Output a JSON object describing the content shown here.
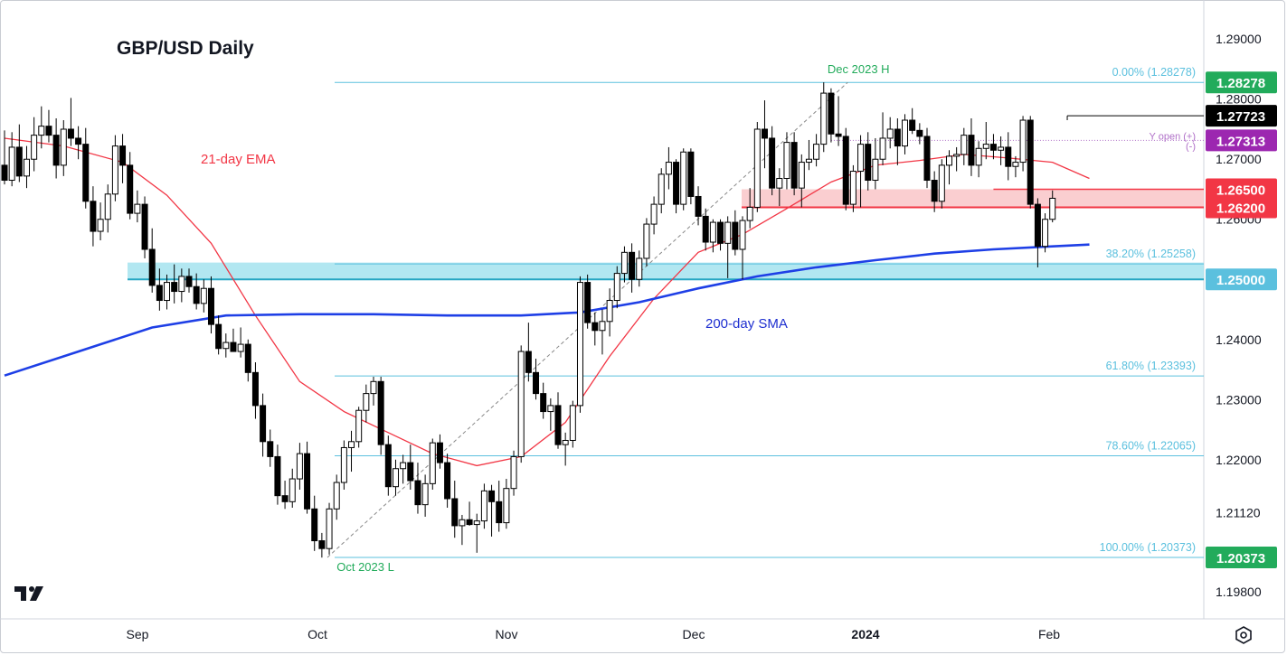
{
  "title": "GBP/USD Daily",
  "colors": {
    "bull_body": "#ffffff",
    "bear_body": "#000000",
    "fib": "#5bc0de",
    "ema": "#f23645",
    "sma": "#1e3fe6",
    "support_zone": "#a4e3ef",
    "resistance_zone": "#f9c5c8"
  },
  "chart_data": {
    "type": "candlestick",
    "symbol": "GBP/USD",
    "timeframe": "Daily",
    "y_axis": {
      "range": [
        1.1935,
        1.2965
      ],
      "ticks": [
        "1.29000",
        "1.28000",
        "1.27000",
        "1.26000",
        "1.25000",
        "1.24000",
        "1.23000",
        "1.22000",
        "1.21120",
        "1.19800"
      ]
    },
    "x_axis": {
      "labels": [
        "Sep",
        "Oct",
        "Nov",
        "Dec",
        "2024",
        "Feb"
      ],
      "bold_label": "2024"
    },
    "price_tags": [
      {
        "label": "1.28278",
        "price": 1.28278,
        "color": "#22ab5b"
      },
      {
        "label": "1.27723",
        "price": 1.27723,
        "color": "#000000"
      },
      {
        "label": "1.27313",
        "price": 1.27313,
        "color": "#9c27b0"
      },
      {
        "label": "1.26500",
        "price": 1.265,
        "color": "#f23645"
      },
      {
        "label": "1.26200",
        "price": 1.262,
        "color": "#f23645"
      },
      {
        "label": "1.25000",
        "price": 1.25,
        "color": "#5bc0de"
      },
      {
        "label": "1.20373",
        "price": 1.20373,
        "color": "#22ab5b"
      }
    ],
    "fibonacci": {
      "levels": [
        {
          "label": "0.00% (1.28278)",
          "price": 1.28278
        },
        {
          "label": "38.20% (1.25258)",
          "price": 1.25258
        },
        {
          "label": "61.80% (1.23393)",
          "price": 1.23393
        },
        {
          "label": "78.60% (1.22065)",
          "price": 1.22065
        },
        {
          "label": "100.00% (1.20373)",
          "price": 1.20373
        }
      ],
      "high_label": "Dec 2023 H",
      "low_label": "Oct 2023 L"
    },
    "zones": [
      {
        "name": "support",
        "from": 1.25,
        "to": 1.2528
      },
      {
        "name": "resistance",
        "from": 1.262,
        "to": 1.265
      }
    ],
    "horizontal_lines": [
      {
        "name": "support-line",
        "price": 1.25
      },
      {
        "name": "resistance-line-upper",
        "price": 1.265
      },
      {
        "name": "resistance-line-lower",
        "price": 1.262
      }
    ],
    "annotations": {
      "ema_label": "21-day EMA",
      "sma_label": "200-day SMA",
      "yopen_label": "Y open (+)",
      "yopen_sub": "(-)",
      "yopen_price": 1.27313
    },
    "candles": [
      {
        "o": 1.269,
        "h": 1.2748,
        "l": 1.2658,
        "c": 1.2665
      },
      {
        "o": 1.2665,
        "h": 1.2745,
        "l": 1.2655,
        "c": 1.272
      },
      {
        "o": 1.272,
        "h": 1.2758,
        "l": 1.2662,
        "c": 1.2672
      },
      {
        "o": 1.2672,
        "h": 1.2722,
        "l": 1.2652,
        "c": 1.27
      },
      {
        "o": 1.27,
        "h": 1.277,
        "l": 1.268,
        "c": 1.274
      },
      {
        "o": 1.274,
        "h": 1.2788,
        "l": 1.2718,
        "c": 1.2755
      },
      {
        "o": 1.2755,
        "h": 1.2782,
        "l": 1.2728,
        "c": 1.274
      },
      {
        "o": 1.274,
        "h": 1.2768,
        "l": 1.2668,
        "c": 1.269
      },
      {
        "o": 1.269,
        "h": 1.2765,
        "l": 1.2672,
        "c": 1.275
      },
      {
        "o": 1.275,
        "h": 1.2802,
        "l": 1.2722,
        "c": 1.2735
      },
      {
        "o": 1.2735,
        "h": 1.2755,
        "l": 1.27,
        "c": 1.2725
      },
      {
        "o": 1.2725,
        "h": 1.2752,
        "l": 1.2618,
        "c": 1.263
      },
      {
        "o": 1.263,
        "h": 1.2655,
        "l": 1.2555,
        "c": 1.258
      },
      {
        "o": 1.258,
        "h": 1.2628,
        "l": 1.2565,
        "c": 1.26
      },
      {
        "o": 1.26,
        "h": 1.2658,
        "l": 1.2578,
        "c": 1.2642
      },
      {
        "o": 1.2642,
        "h": 1.274,
        "l": 1.263,
        "c": 1.2722
      },
      {
        "o": 1.2722,
        "h": 1.2742,
        "l": 1.266,
        "c": 1.269
      },
      {
        "o": 1.269,
        "h": 1.2712,
        "l": 1.26,
        "c": 1.261
      },
      {
        "o": 1.261,
        "h": 1.2648,
        "l": 1.2595,
        "c": 1.2625
      },
      {
        "o": 1.2625,
        "h": 1.2638,
        "l": 1.2535,
        "c": 1.255
      },
      {
        "o": 1.255,
        "h": 1.2585,
        "l": 1.2478,
        "c": 1.249
      },
      {
        "o": 1.249,
        "h": 1.2518,
        "l": 1.2448,
        "c": 1.2465
      },
      {
        "o": 1.2465,
        "h": 1.2508,
        "l": 1.245,
        "c": 1.2495
      },
      {
        "o": 1.2495,
        "h": 1.2525,
        "l": 1.246,
        "c": 1.248
      },
      {
        "o": 1.248,
        "h": 1.2518,
        "l": 1.2462,
        "c": 1.2505
      },
      {
        "o": 1.2505,
        "h": 1.2518,
        "l": 1.2478,
        "c": 1.2488
      },
      {
        "o": 1.2488,
        "h": 1.251,
        "l": 1.245,
        "c": 1.246
      },
      {
        "o": 1.246,
        "h": 1.25,
        "l": 1.2445,
        "c": 1.2485
      },
      {
        "o": 1.2485,
        "h": 1.2505,
        "l": 1.241,
        "c": 1.2425
      },
      {
        "o": 1.2425,
        "h": 1.244,
        "l": 1.2375,
        "c": 1.2385
      },
      {
        "o": 1.2385,
        "h": 1.241,
        "l": 1.237,
        "c": 1.2395
      },
      {
        "o": 1.2395,
        "h": 1.2418,
        "l": 1.238,
        "c": 1.238
      },
      {
        "o": 1.238,
        "h": 1.242,
        "l": 1.237,
        "c": 1.2392
      },
      {
        "o": 1.2392,
        "h": 1.24,
        "l": 1.233,
        "c": 1.2345
      },
      {
        "o": 1.2345,
        "h": 1.2362,
        "l": 1.2268,
        "c": 1.229
      },
      {
        "o": 1.229,
        "h": 1.231,
        "l": 1.2205,
        "c": 1.223
      },
      {
        "o": 1.223,
        "h": 1.225,
        "l": 1.2188,
        "c": 1.2205
      },
      {
        "o": 1.2205,
        "h": 1.2225,
        "l": 1.2125,
        "c": 1.214
      },
      {
        "o": 1.214,
        "h": 1.2165,
        "l": 1.2118,
        "c": 1.213
      },
      {
        "o": 1.213,
        "h": 1.2185,
        "l": 1.212,
        "c": 1.2168
      },
      {
        "o": 1.2168,
        "h": 1.2228,
        "l": 1.215,
        "c": 1.221
      },
      {
        "o": 1.221,
        "h": 1.223,
        "l": 1.211,
        "c": 1.2118
      },
      {
        "o": 1.2118,
        "h": 1.214,
        "l": 1.2048,
        "c": 1.2065
      },
      {
        "o": 1.2065,
        "h": 1.2078,
        "l": 1.2037,
        "c": 1.2052
      },
      {
        "o": 1.2052,
        "h": 1.2128,
        "l": 1.2042,
        "c": 1.2118
      },
      {
        "o": 1.2118,
        "h": 1.2175,
        "l": 1.21,
        "c": 1.2162
      },
      {
        "o": 1.2162,
        "h": 1.2232,
        "l": 1.215,
        "c": 1.222
      },
      {
        "o": 1.222,
        "h": 1.2248,
        "l": 1.218,
        "c": 1.223
      },
      {
        "o": 1.223,
        "h": 1.2288,
        "l": 1.222,
        "c": 1.2282
      },
      {
        "o": 1.2282,
        "h": 1.2325,
        "l": 1.2262,
        "c": 1.231
      },
      {
        "o": 1.231,
        "h": 1.2338,
        "l": 1.229,
        "c": 1.233
      },
      {
        "o": 1.233,
        "h": 1.2338,
        "l": 1.2208,
        "c": 1.2225
      },
      {
        "o": 1.2225,
        "h": 1.224,
        "l": 1.214,
        "c": 1.2155
      },
      {
        "o": 1.2155,
        "h": 1.22,
        "l": 1.214,
        "c": 1.2185
      },
      {
        "o": 1.2185,
        "h": 1.2208,
        "l": 1.216,
        "c": 1.2195
      },
      {
        "o": 1.2195,
        "h": 1.2225,
        "l": 1.215,
        "c": 1.2165
      },
      {
        "o": 1.2165,
        "h": 1.2195,
        "l": 1.211,
        "c": 1.2125
      },
      {
        "o": 1.2125,
        "h": 1.2175,
        "l": 1.2105,
        "c": 1.216
      },
      {
        "o": 1.216,
        "h": 1.2235,
        "l": 1.215,
        "c": 1.2228
      },
      {
        "o": 1.2228,
        "h": 1.2242,
        "l": 1.2185,
        "c": 1.2195
      },
      {
        "o": 1.2195,
        "h": 1.221,
        "l": 1.212,
        "c": 1.2135
      },
      {
        "o": 1.2135,
        "h": 1.2165,
        "l": 1.207,
        "c": 1.209
      },
      {
        "o": 1.209,
        "h": 1.2108,
        "l": 1.2058,
        "c": 1.21
      },
      {
        "o": 1.21,
        "h": 1.213,
        "l": 1.209,
        "c": 1.2092
      },
      {
        "o": 1.2092,
        "h": 1.211,
        "l": 1.2045,
        "c": 1.2098
      },
      {
        "o": 1.2098,
        "h": 1.216,
        "l": 1.2085,
        "c": 1.2148
      },
      {
        "o": 1.2148,
        "h": 1.2158,
        "l": 1.2072,
        "c": 1.213
      },
      {
        "o": 1.213,
        "h": 1.2165,
        "l": 1.208,
        "c": 1.2095
      },
      {
        "o": 1.2095,
        "h": 1.2168,
        "l": 1.2085,
        "c": 1.2152
      },
      {
        "o": 1.2152,
        "h": 1.2215,
        "l": 1.214,
        "c": 1.2205
      },
      {
        "o": 1.2205,
        "h": 1.239,
        "l": 1.2195,
        "c": 1.238
      },
      {
        "o": 1.238,
        "h": 1.2428,
        "l": 1.233,
        "c": 1.2345
      },
      {
        "o": 1.2345,
        "h": 1.2368,
        "l": 1.23,
        "c": 1.231
      },
      {
        "o": 1.231,
        "h": 1.2328,
        "l": 1.2268,
        "c": 1.228
      },
      {
        "o": 1.228,
        "h": 1.2302,
        "l": 1.2248,
        "c": 1.229
      },
      {
        "o": 1.229,
        "h": 1.2312,
        "l": 1.2218,
        "c": 1.2225
      },
      {
        "o": 1.2225,
        "h": 1.2245,
        "l": 1.219,
        "c": 1.2232
      },
      {
        "o": 1.2232,
        "h": 1.2298,
        "l": 1.222,
        "c": 1.229
      },
      {
        "o": 1.229,
        "h": 1.2505,
        "l": 1.2278,
        "c": 1.2495
      },
      {
        "o": 1.2495,
        "h": 1.2508,
        "l": 1.2418,
        "c": 1.2428
      },
      {
        "o": 1.2428,
        "h": 1.2445,
        "l": 1.239,
        "c": 1.2415
      },
      {
        "o": 1.2415,
        "h": 1.245,
        "l": 1.2375,
        "c": 1.243
      },
      {
        "o": 1.243,
        "h": 1.2485,
        "l": 1.2405,
        "c": 1.2465
      },
      {
        "o": 1.2465,
        "h": 1.2522,
        "l": 1.2452,
        "c": 1.251
      },
      {
        "o": 1.251,
        "h": 1.2555,
        "l": 1.2495,
        "c": 1.2545
      },
      {
        "o": 1.2545,
        "h": 1.256,
        "l": 1.2478,
        "c": 1.25
      },
      {
        "o": 1.25,
        "h": 1.2548,
        "l": 1.2488,
        "c": 1.2535
      },
      {
        "o": 1.2535,
        "h": 1.2602,
        "l": 1.2522,
        "c": 1.2592
      },
      {
        "o": 1.2592,
        "h": 1.2638,
        "l": 1.2575,
        "c": 1.2625
      },
      {
        "o": 1.2625,
        "h": 1.2685,
        "l": 1.261,
        "c": 1.2675
      },
      {
        "o": 1.2675,
        "h": 1.272,
        "l": 1.265,
        "c": 1.2695
      },
      {
        "o": 1.2695,
        "h": 1.27,
        "l": 1.261,
        "c": 1.2625
      },
      {
        "o": 1.2625,
        "h": 1.2718,
        "l": 1.2615,
        "c": 1.2712
      },
      {
        "o": 1.2712,
        "h": 1.2718,
        "l": 1.2625,
        "c": 1.2638
      },
      {
        "o": 1.2638,
        "h": 1.2655,
        "l": 1.259,
        "c": 1.2605
      },
      {
        "o": 1.2605,
        "h": 1.2618,
        "l": 1.2548,
        "c": 1.2562
      },
      {
        "o": 1.2562,
        "h": 1.26,
        "l": 1.2545,
        "c": 1.2595
      },
      {
        "o": 1.2595,
        "h": 1.26,
        "l": 1.2548,
        "c": 1.256
      },
      {
        "o": 1.256,
        "h": 1.2605,
        "l": 1.2502,
        "c": 1.2595
      },
      {
        "o": 1.2595,
        "h": 1.2615,
        "l": 1.254,
        "c": 1.255
      },
      {
        "o": 1.255,
        "h": 1.2605,
        "l": 1.25,
        "c": 1.2598
      },
      {
        "o": 1.2598,
        "h": 1.2652,
        "l": 1.2585,
        "c": 1.262
      },
      {
        "o": 1.262,
        "h": 1.2762,
        "l": 1.2612,
        "c": 1.275
      },
      {
        "o": 1.275,
        "h": 1.2798,
        "l": 1.2685,
        "c": 1.2735
      },
      {
        "o": 1.2735,
        "h": 1.2755,
        "l": 1.264,
        "c": 1.2652
      },
      {
        "o": 1.2652,
        "h": 1.2685,
        "l": 1.2622,
        "c": 1.2668
      },
      {
        "o": 1.2668,
        "h": 1.2745,
        "l": 1.265,
        "c": 1.2728
      },
      {
        "o": 1.2728,
        "h": 1.2745,
        "l": 1.264,
        "c": 1.2652
      },
      {
        "o": 1.2652,
        "h": 1.2708,
        "l": 1.262,
        "c": 1.2695
      },
      {
        "o": 1.2695,
        "h": 1.2732,
        "l": 1.2682,
        "c": 1.27
      },
      {
        "o": 1.27,
        "h": 1.2742,
        "l": 1.2688,
        "c": 1.2725
      },
      {
        "o": 1.2725,
        "h": 1.2828,
        "l": 1.2712,
        "c": 1.281
      },
      {
        "o": 1.281,
        "h": 1.2818,
        "l": 1.2728,
        "c": 1.2742
      },
      {
        "o": 1.2742,
        "h": 1.2805,
        "l": 1.2722,
        "c": 1.2738
      },
      {
        "o": 1.2738,
        "h": 1.2752,
        "l": 1.2615,
        "c": 1.2625
      },
      {
        "o": 1.2625,
        "h": 1.269,
        "l": 1.2612,
        "c": 1.268
      },
      {
        "o": 1.268,
        "h": 1.274,
        "l": 1.262,
        "c": 1.2725
      },
      {
        "o": 1.2725,
        "h": 1.2745,
        "l": 1.2648,
        "c": 1.2665
      },
      {
        "o": 1.2665,
        "h": 1.2735,
        "l": 1.265,
        "c": 1.27
      },
      {
        "o": 1.27,
        "h": 1.2778,
        "l": 1.269,
        "c": 1.2735
      },
      {
        "o": 1.2735,
        "h": 1.277,
        "l": 1.2718,
        "c": 1.275
      },
      {
        "o": 1.275,
        "h": 1.2768,
        "l": 1.269,
        "c": 1.2722
      },
      {
        "o": 1.2722,
        "h": 1.2775,
        "l": 1.2708,
        "c": 1.2765
      },
      {
        "o": 1.2765,
        "h": 1.2785,
        "l": 1.2742,
        "c": 1.2748
      },
      {
        "o": 1.2748,
        "h": 1.276,
        "l": 1.2725,
        "c": 1.2738
      },
      {
        "o": 1.2738,
        "h": 1.2752,
        "l": 1.2652,
        "c": 1.2665
      },
      {
        "o": 1.2665,
        "h": 1.268,
        "l": 1.2612,
        "c": 1.263
      },
      {
        "o": 1.263,
        "h": 1.27,
        "l": 1.2618,
        "c": 1.269
      },
      {
        "o": 1.269,
        "h": 1.2715,
        "l": 1.2658,
        "c": 1.2705
      },
      {
        "o": 1.2705,
        "h": 1.272,
        "l": 1.268,
        "c": 1.2708
      },
      {
        "o": 1.2708,
        "h": 1.2752,
        "l": 1.269,
        "c": 1.274
      },
      {
        "o": 1.274,
        "h": 1.2768,
        "l": 1.2672,
        "c": 1.269
      },
      {
        "o": 1.269,
        "h": 1.273,
        "l": 1.267,
        "c": 1.2718
      },
      {
        "o": 1.2718,
        "h": 1.2762,
        "l": 1.27,
        "c": 1.2725
      },
      {
        "o": 1.2725,
        "h": 1.2742,
        "l": 1.27,
        "c": 1.2715
      },
      {
        "o": 1.2715,
        "h": 1.2738,
        "l": 1.269,
        "c": 1.272
      },
      {
        "o": 1.272,
        "h": 1.2745,
        "l": 1.2665,
        "c": 1.2688
      },
      {
        "o": 1.2688,
        "h": 1.2705,
        "l": 1.267,
        "c": 1.2695
      },
      {
        "o": 1.2695,
        "h": 1.2772,
        "l": 1.268,
        "c": 1.2765
      },
      {
        "o": 1.2765,
        "h": 1.2772,
        "l": 1.2618,
        "c": 1.2625
      },
      {
        "o": 1.2625,
        "h": 1.2635,
        "l": 1.252,
        "c": 1.2555
      },
      {
        "o": 1.2555,
        "h": 1.261,
        "l": 1.2545,
        "c": 1.26
      },
      {
        "o": 1.26,
        "h": 1.2648,
        "l": 1.2595,
        "c": 1.2635
      }
    ],
    "ema21": [
      [
        0,
        1.2735
      ],
      [
        8,
        1.2722
      ],
      [
        16,
        1.2695
      ],
      [
        22,
        1.264
      ],
      [
        28,
        1.256
      ],
      [
        34,
        1.244
      ],
      [
        40,
        1.233
      ],
      [
        46,
        1.228
      ],
      [
        52,
        1.2245
      ],
      [
        58,
        1.221
      ],
      [
        64,
        1.219
      ],
      [
        70,
        1.2205
      ],
      [
        76,
        1.2262
      ],
      [
        82,
        1.2372
      ],
      [
        88,
        1.2468
      ],
      [
        94,
        1.2545
      ],
      [
        100,
        1.2575
      ],
      [
        106,
        1.2618
      ],
      [
        112,
        1.2662
      ],
      [
        118,
        1.269
      ],
      [
        124,
        1.2698
      ],
      [
        130,
        1.2708
      ],
      [
        136,
        1.2702
      ],
      [
        142,
        1.2695
      ],
      [
        147,
        1.2668
      ]
    ],
    "sma200": [
      [
        0,
        1.234
      ],
      [
        10,
        1.238
      ],
      [
        20,
        1.242
      ],
      [
        30,
        1.244
      ],
      [
        40,
        1.2442
      ],
      [
        50,
        1.2442
      ],
      [
        60,
        1.244
      ],
      [
        70,
        1.244
      ],
      [
        78,
        1.2445
      ],
      [
        86,
        1.2462
      ],
      [
        94,
        1.2485
      ],
      [
        102,
        1.2505
      ],
      [
        110,
        1.252
      ],
      [
        118,
        1.2532
      ],
      [
        126,
        1.2543
      ],
      [
        134,
        1.255
      ],
      [
        142,
        1.2555
      ],
      [
        147,
        1.2558
      ]
    ]
  }
}
